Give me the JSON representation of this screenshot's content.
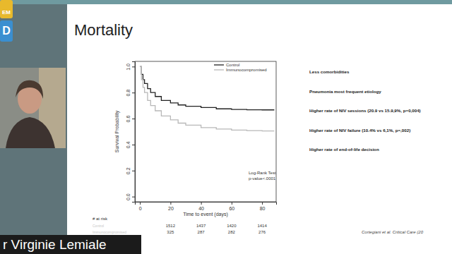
{
  "slide": {
    "title": "Mortality",
    "bullets": [
      "Less comorbidities",
      "Pneumonia most frequent etiology",
      "Higher rate of NIV sessions (20.9 vs 15.9,9%, p=0,004)",
      "Higher rate of NIV failure (10.4% vs 6,1%, p=,002)",
      "Higher rate of end-of-life decision"
    ],
    "citation": "Cortegiani et al. Critical Care (20",
    "speaker": "r Virginie Lemiale",
    "logo": [
      "EM",
      "D"
    ]
  },
  "chart_data": {
    "type": "line",
    "line_style": "step",
    "x_label": "Time to event (days)",
    "y_label": "Survival Probability",
    "x": [
      0,
      1,
      2,
      3,
      5,
      7,
      10,
      14,
      20,
      25,
      30,
      40,
      50,
      60,
      70,
      80,
      88
    ],
    "series": [
      {
        "name": "Control",
        "color": "#222222",
        "values": [
          1,
          0.94,
          0.9,
          0.87,
          0.83,
          0.8,
          0.77,
          0.74,
          0.72,
          0.705,
          0.695,
          0.685,
          0.675,
          0.67,
          0.668,
          0.667,
          0.667
        ]
      },
      {
        "name": "Immunocompromised",
        "color": "#b8b8b8",
        "values": [
          1,
          0.9,
          0.84,
          0.8,
          0.74,
          0.7,
          0.66,
          0.62,
          0.59,
          0.565,
          0.55,
          0.53,
          0.52,
          0.512,
          0.508,
          0.505,
          0.505
        ]
      }
    ],
    "xlim": [
      -3.3,
      89.2
    ],
    "xticks": [
      0,
      20,
      40,
      60,
      80
    ],
    "ylim": [
      -0.04,
      1.04
    ],
    "yticks": [
      {
        "value": 0,
        "label": "0.0"
      },
      0.2,
      0.4,
      0.6,
      0.8,
      {
        "value": 1,
        "label": "1.0"
      }
    ],
    "legend": "top-right",
    "annotations": [
      "Log-Rank Test",
      "p-value<.0001"
    ]
  },
  "risk_table": {
    "title": "# at risk",
    "times": [
      20,
      40,
      60,
      80
    ],
    "rows": [
      {
        "name": "Control",
        "values": [
          1512,
          1437,
          1420,
          1414
        ]
      },
      {
        "name": "Immunocompromised",
        "values": [
          325,
          287,
          282,
          276
        ]
      }
    ]
  }
}
